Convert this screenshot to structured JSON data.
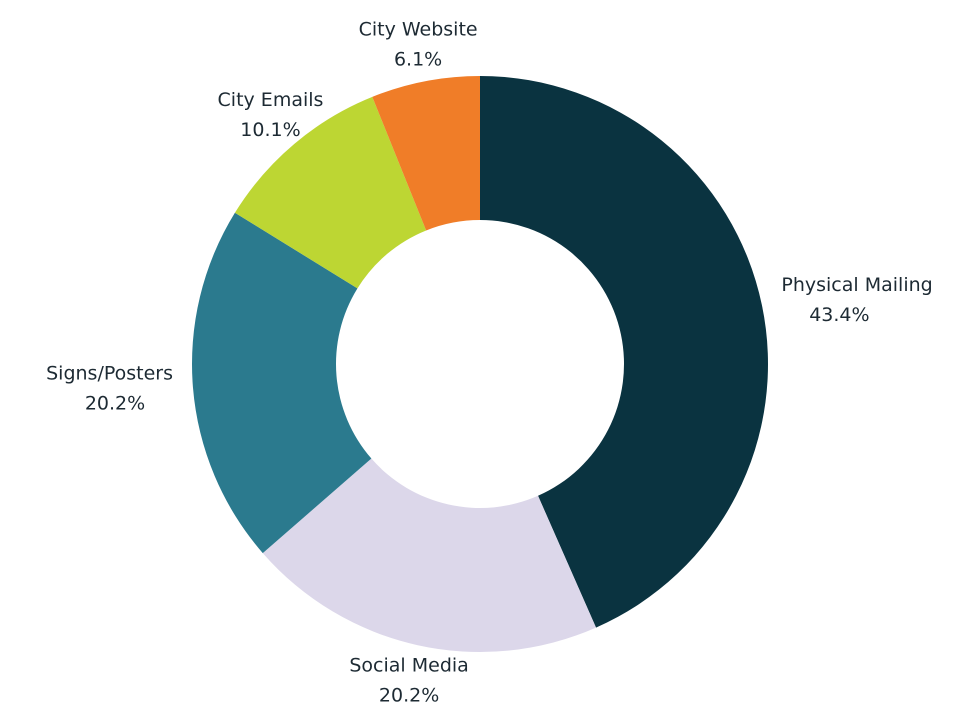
{
  "chart_data": {
    "type": "donut",
    "categories": [
      "Physical Mailing",
      "Social Media",
      "Signs/Posters",
      "City Emails",
      "City Website"
    ],
    "values": [
      43.4,
      20.2,
      20.2,
      10.1,
      6.1
    ],
    "value_labels": [
      "43.4%",
      "20.2%",
      "20.2%",
      "10.1%",
      "6.1%"
    ],
    "colors": [
      "#0a3340",
      "#dcd7ea",
      "#2b7a8e",
      "#bdd633",
      "#f07d28"
    ]
  }
}
